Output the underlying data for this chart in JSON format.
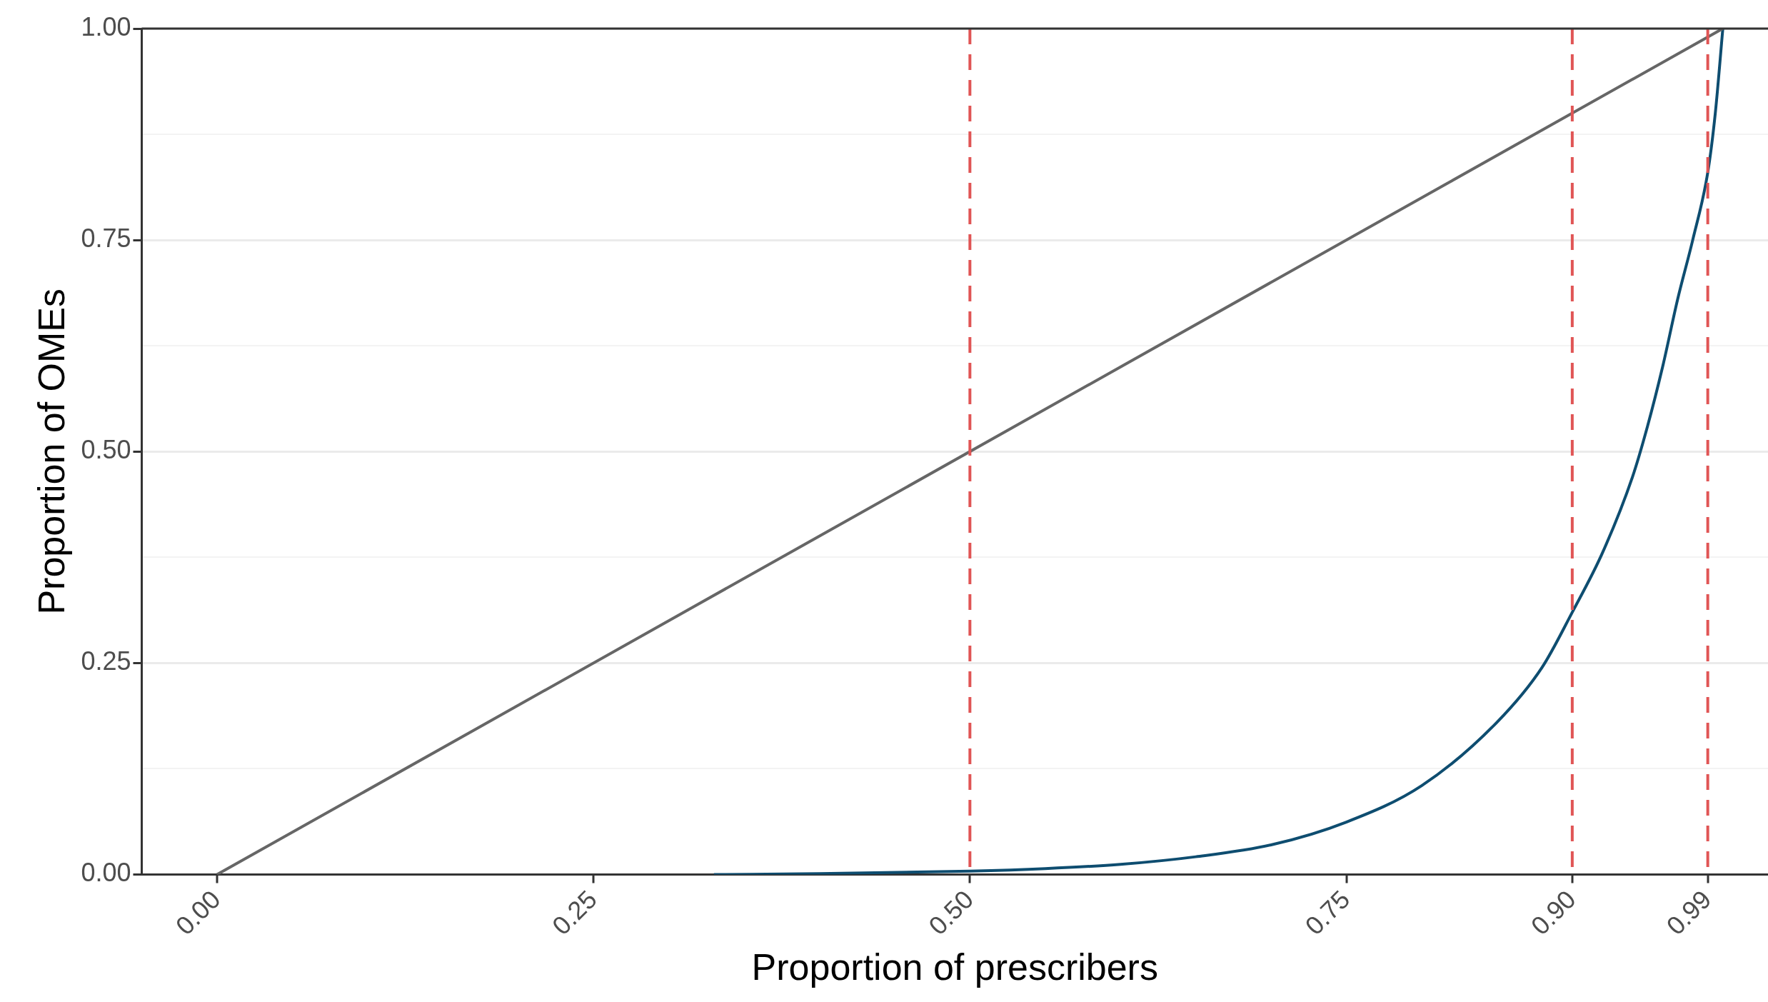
{
  "chart_data": {
    "type": "line",
    "xlabel": "Proportion of prescribers",
    "ylabel": "Proportion of OMEs",
    "xlim": [
      -0.05,
      1.03
    ],
    "ylim": [
      0,
      1
    ],
    "xticks": [
      {
        "value": 0,
        "label": "0.00"
      },
      {
        "value": 0.25,
        "label": "0.25"
      },
      {
        "value": 0.5,
        "label": "0.50"
      },
      {
        "value": 0.75,
        "label": "0.75"
      },
      {
        "value": 0.9,
        "label": "0.90"
      },
      {
        "value": 0.99,
        "label": "0.99"
      }
    ],
    "yticks": [
      {
        "value": 0,
        "label": "0.00"
      },
      {
        "value": 0.125,
        "label": null
      },
      {
        "value": 0.25,
        "label": "0.25"
      },
      {
        "value": 0.375,
        "label": null
      },
      {
        "value": 0.5,
        "label": "0.50"
      },
      {
        "value": 0.625,
        "label": null
      },
      {
        "value": 0.75,
        "label": "0.75"
      },
      {
        "value": 0.875,
        "label": null
      },
      {
        "value": 1,
        "label": "1.00"
      }
    ],
    "grid": "y",
    "legend": false,
    "marker": "none",
    "line_style": "solid",
    "series": [
      {
        "color": "#666666",
        "x": [
          0,
          1
        ],
        "values": [
          0,
          1
        ]
      },
      {
        "color": "#0e4d70",
        "x": [
          0.33,
          0.4,
          0.5,
          0.55,
          0.6,
          0.65,
          0.7,
          0.75,
          0.8,
          0.85,
          0.88,
          0.9,
          0.92,
          0.94,
          0.95,
          0.96,
          0.97,
          0.98,
          0.99,
          0.995,
          1
        ],
        "values": [
          0,
          0.001,
          0.004,
          0.007,
          0.012,
          0.021,
          0.035,
          0.062,
          0.105,
          0.18,
          0.245,
          0.31,
          0.38,
          0.47,
          0.53,
          0.6,
          0.68,
          0.75,
          0.83,
          0.9,
          1
        ]
      }
    ],
    "ref_lines": [
      {
        "axis": "x",
        "value": 0.5,
        "color": "#e05555",
        "line_style": "dashed"
      },
      {
        "axis": "x",
        "value": 0.9,
        "color": "#e05555",
        "line_style": "dashed"
      },
      {
        "axis": "x",
        "value": 0.99,
        "color": "#e05555",
        "line_style": "dashed"
      }
    ]
  }
}
